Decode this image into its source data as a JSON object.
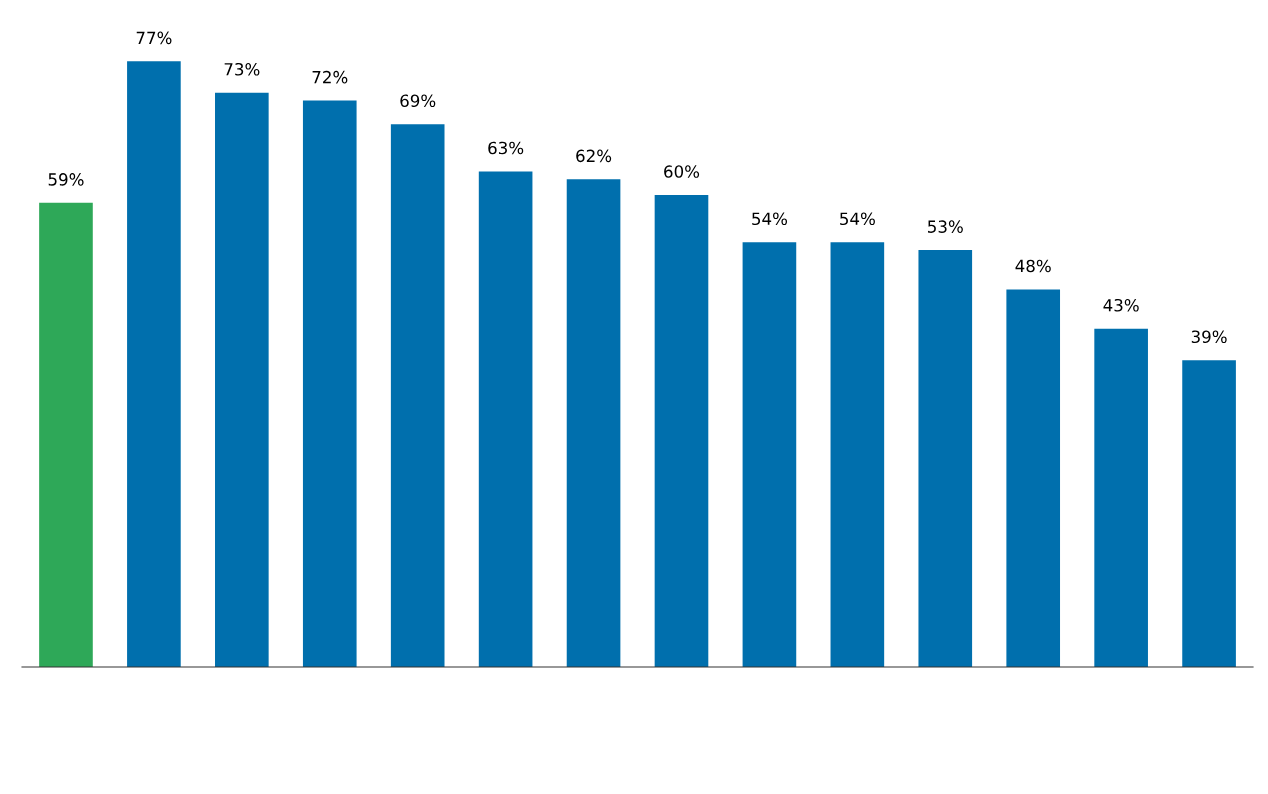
{
  "chart_data": {
    "type": "bar",
    "categories": [
      null,
      null,
      null,
      null,
      null,
      null,
      null,
      null,
      null,
      null,
      null,
      null,
      null,
      null
    ],
    "values": [
      59,
      77,
      73,
      72,
      69,
      63,
      62,
      60,
      54,
      54,
      53,
      48,
      43,
      39
    ],
    "colors": [
      "#2ea858",
      "#006fad",
      "#006fad",
      "#006fad",
      "#006fad",
      "#006fad",
      "#006fad",
      "#006fad",
      "#006fad",
      "#006fad",
      "#006fad",
      "#006fad",
      "#006fad",
      "#006fad"
    ],
    "value_labels": [
      "59%",
      "77%",
      "73%",
      "72%",
      "69%",
      "63%",
      "62%",
      "60%",
      "54%",
      "54%",
      "53%",
      "48%",
      "43%",
      "39%"
    ],
    "grid": false,
    "legend": false
  }
}
